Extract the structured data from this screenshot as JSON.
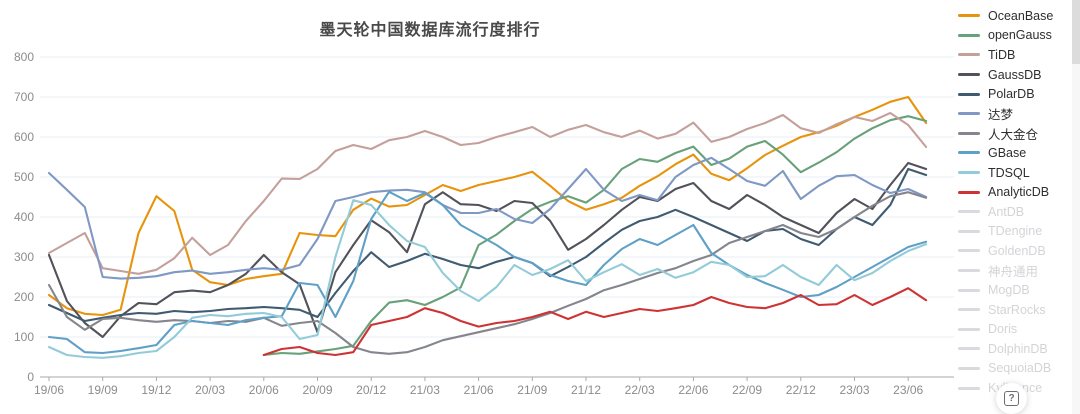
{
  "page": {
    "help_icon_glyph": "?"
  },
  "chart_data": {
    "type": "line",
    "title": "墨天轮中国数据库流行度排行",
    "xlabel": "",
    "ylabel": "",
    "ylim": [
      0,
      800
    ],
    "y_ticks": [
      0,
      100,
      200,
      300,
      400,
      500,
      600,
      700,
      800
    ],
    "grid": true,
    "legend_position": "right",
    "x_labels": [
      "19/06",
      "19/07",
      "19/08",
      "19/09",
      "19/10",
      "19/11",
      "19/12",
      "20/01",
      "20/02",
      "20/03",
      "20/04",
      "20/05",
      "20/06",
      "20/07",
      "20/08",
      "20/09",
      "20/10",
      "20/11",
      "20/12",
      "21/01",
      "21/02",
      "21/03",
      "21/04",
      "21/05",
      "21/06",
      "21/07",
      "21/08",
      "21/09",
      "21/10",
      "21/11",
      "21/12",
      "22/01",
      "22/02",
      "22/03",
      "22/04",
      "22/05",
      "22/06",
      "22/07",
      "22/08",
      "22/09",
      "22/10",
      "22/11",
      "22/12",
      "23/01",
      "23/02",
      "23/03",
      "23/04",
      "23/05",
      "23/06",
      "23/07"
    ],
    "x_tick_labels": [
      "19/06",
      "19/09",
      "19/12",
      "20/03",
      "20/06",
      "20/09",
      "20/12",
      "21/03",
      "21/06",
      "21/09",
      "21/12",
      "22/03",
      "22/06",
      "22/09",
      "22/12",
      "23/03",
      "23/06"
    ],
    "series": [
      {
        "name": "OceanBase",
        "color": "#E8930C",
        "values": [
          205,
          172,
          158,
          155,
          168,
          360,
          452,
          415,
          268,
          237,
          230,
          245,
          252,
          258,
          360,
          355,
          352,
          418,
          446,
          426,
          430,
          455,
          480,
          465,
          480,
          490,
          500,
          513,
          478,
          440,
          418,
          432,
          448,
          478,
          502,
          532,
          556,
          508,
          492,
          522,
          555,
          578,
          600,
          612,
          628,
          650,
          668,
          688,
          700,
          635
        ]
      },
      {
        "name": "openGauss",
        "color": "#68A179",
        "values": [
          null,
          null,
          null,
          null,
          null,
          null,
          null,
          null,
          null,
          null,
          null,
          null,
          55,
          60,
          58,
          64,
          70,
          78,
          140,
          186,
          192,
          180,
          200,
          224,
          330,
          356,
          390,
          420,
          438,
          452,
          436,
          468,
          520,
          545,
          538,
          560,
          576,
          530,
          546,
          576,
          590,
          556,
          512,
          536,
          562,
          596,
          622,
          642,
          652,
          640
        ]
      },
      {
        "name": "TiDB",
        "color": "#C4A09B",
        "values": [
          310,
          335,
          360,
          272,
          265,
          258,
          268,
          297,
          348,
          305,
          330,
          390,
          440,
          496,
          495,
          520,
          565,
          580,
          570,
          592,
          600,
          615,
          600,
          580,
          585,
          600,
          612,
          625,
          600,
          618,
          630,
          612,
          600,
          616,
          596,
          608,
          636,
          588,
          600,
          620,
          635,
          655,
          622,
          610,
          632,
          650,
          640,
          660,
          630,
          575
        ]
      },
      {
        "name": "GaussDB",
        "color": "#52525A",
        "values": [
          305,
          190,
          135,
          100,
          152,
          185,
          182,
          212,
          216,
          212,
          230,
          258,
          305,
          262,
          232,
          112,
          262,
          330,
          392,
          362,
          312,
          432,
          462,
          432,
          430,
          415,
          440,
          435,
          390,
          318,
          345,
          380,
          418,
          450,
          440,
          470,
          485,
          440,
          420,
          455,
          430,
          400,
          380,
          360,
          410,
          445,
          420,
          480,
          535,
          520
        ]
      },
      {
        "name": "PolarDB",
        "color": "#405A70",
        "values": [
          180,
          160,
          140,
          148,
          155,
          160,
          158,
          165,
          162,
          165,
          170,
          172,
          175,
          172,
          168,
          150,
          210,
          265,
          312,
          275,
          290,
          308,
          295,
          280,
          272,
          288,
          300,
          285,
          252,
          275,
          300,
          335,
          368,
          390,
          400,
          418,
          400,
          380,
          360,
          340,
          365,
          370,
          345,
          330,
          370,
          400,
          380,
          430,
          520,
          505
        ]
      },
      {
        "name": "达梦",
        "color": "#7F98C4",
        "values": [
          510,
          468,
          425,
          250,
          246,
          248,
          252,
          262,
          266,
          258,
          262,
          268,
          272,
          268,
          280,
          345,
          440,
          450,
          462,
          466,
          468,
          462,
          430,
          410,
          410,
          420,
          395,
          385,
          420,
          470,
          520,
          468,
          440,
          455,
          442,
          500,
          530,
          548,
          520,
          490,
          478,
          515,
          445,
          478,
          502,
          505,
          480,
          460,
          470,
          450
        ]
      },
      {
        "name": "人大金仓",
        "color": "#85858D",
        "values": [
          230,
          150,
          118,
          145,
          148,
          142,
          138,
          142,
          140,
          135,
          140,
          138,
          148,
          128,
          135,
          140,
          110,
          75,
          62,
          58,
          62,
          75,
          92,
          102,
          112,
          122,
          132,
          145,
          160,
          178,
          195,
          217,
          230,
          245,
          260,
          272,
          290,
          305,
          335,
          350,
          365,
          380,
          360,
          350,
          370,
          400,
          428,
          452,
          462,
          448
        ]
      },
      {
        "name": "GBase",
        "color": "#5FA0C6",
        "values": [
          100,
          95,
          62,
          60,
          65,
          72,
          80,
          130,
          140,
          135,
          130,
          142,
          148,
          152,
          235,
          230,
          150,
          240,
          395,
          463,
          440,
          460,
          430,
          380,
          355,
          330,
          300,
          285,
          255,
          240,
          230,
          280,
          320,
          345,
          330,
          355,
          380,
          310,
          280,
          255,
          235,
          218,
          200,
          205,
          225,
          250,
          275,
          300,
          325,
          338
        ]
      },
      {
        "name": "TDSQL",
        "color": "#93CBD8",
        "values": [
          75,
          55,
          50,
          48,
          52,
          60,
          65,
          100,
          148,
          155,
          152,
          158,
          160,
          150,
          95,
          105,
          300,
          442,
          430,
          380,
          340,
          325,
          260,
          215,
          190,
          225,
          280,
          255,
          270,
          292,
          240,
          262,
          282,
          255,
          270,
          248,
          262,
          288,
          280,
          250,
          252,
          280,
          250,
          230,
          280,
          242,
          260,
          290,
          315,
          332
        ]
      },
      {
        "name": "AnalyticDB",
        "color": "#CE3333",
        "values": [
          null,
          null,
          null,
          null,
          null,
          null,
          null,
          null,
          null,
          null,
          null,
          null,
          55,
          70,
          75,
          60,
          55,
          62,
          130,
          140,
          150,
          172,
          160,
          140,
          126,
          135,
          140,
          150,
          163,
          145,
          163,
          150,
          160,
          170,
          165,
          172,
          180,
          200,
          185,
          175,
          172,
          185,
          205,
          180,
          182,
          205,
          180,
          200,
          222,
          192
        ]
      }
    ],
    "disabled_series": [
      {
        "name": "AntDB"
      },
      {
        "name": "TDengine"
      },
      {
        "name": "GoldenDB"
      },
      {
        "name": "神舟通用"
      },
      {
        "name": "MogDB"
      },
      {
        "name": "StarRocks"
      },
      {
        "name": "Doris"
      },
      {
        "name": "DolphinDB"
      },
      {
        "name": "SequoiaDB"
      },
      {
        "name": "Kyligence"
      }
    ],
    "disabled_color": "#D9D9DE"
  },
  "colors": {
    "grid_line": "#E9EFF5",
    "axis_line": "#A9A9A9",
    "tick_text": "#8C8C8C",
    "title_text": "#494949"
  }
}
